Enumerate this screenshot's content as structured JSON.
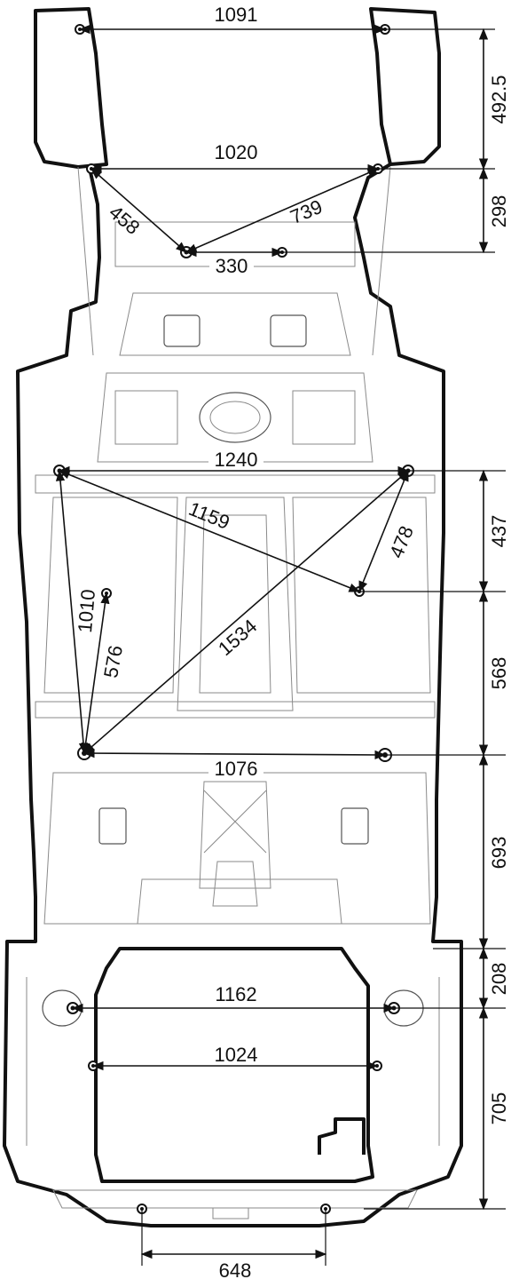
{
  "colors": {
    "line": "#111111",
    "detail": "#8a8a8a",
    "background": "#ffffff"
  },
  "dimensions": {
    "top_width": "1091",
    "front_rail_width": "1020",
    "diag_458": "458",
    "diag_739": "739",
    "center_330": "330",
    "mid_width_1240": "1240",
    "diag_1159": "1159",
    "diag_478": "478",
    "long_1010": "1010",
    "short_576": "576",
    "diag_1534": "1534",
    "rear_width_1076": "1076",
    "trunk_1162": "1162",
    "trunk_1024": "1024",
    "bottom_648": "648",
    "right_492_5": "492.5",
    "right_298": "298",
    "right_437": "437",
    "right_568": "568",
    "right_693": "693",
    "right_208": "208",
    "right_705": "705"
  }
}
